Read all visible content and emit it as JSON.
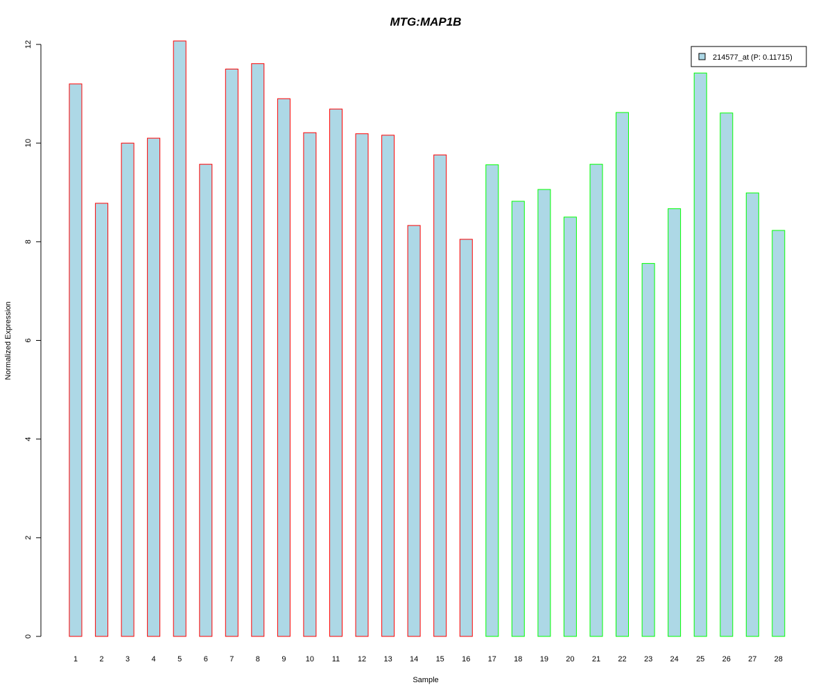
{
  "chart_data": {
    "type": "bar",
    "title": "MTG:MAP1B",
    "xlabel": "Sample",
    "ylabel": "Normalized Expression",
    "ylim": [
      0,
      12
    ],
    "yticks": [
      "0",
      "2",
      "4",
      "6",
      "8",
      "10",
      "12"
    ],
    "categories": [
      "1",
      "2",
      "3",
      "4",
      "5",
      "6",
      "7",
      "8",
      "9",
      "10",
      "11",
      "12",
      "13",
      "14",
      "15",
      "16",
      "17",
      "18",
      "19",
      "20",
      "21",
      "22",
      "23",
      "24",
      "25",
      "26",
      "27",
      "28"
    ],
    "series": [
      {
        "name": "214577_at (P: 0.11715)",
        "values": [
          11.2,
          8.78,
          10.0,
          10.1,
          12.07,
          9.57,
          11.5,
          11.61,
          10.9,
          10.21,
          10.69,
          10.19,
          10.16,
          8.33,
          9.76,
          8.05,
          9.56,
          8.82,
          9.06,
          8.5,
          9.57,
          10.62,
          7.56,
          8.67,
          11.42,
          10.61,
          8.99,
          8.23
        ]
      }
    ],
    "fill_color": "#add8e6",
    "group_border_colors": [
      "#ff0000",
      "#00ff00"
    ],
    "group_sizes": [
      16,
      12
    ],
    "title_color": "#0000cd",
    "legend_position": "top-right",
    "grid": false
  }
}
